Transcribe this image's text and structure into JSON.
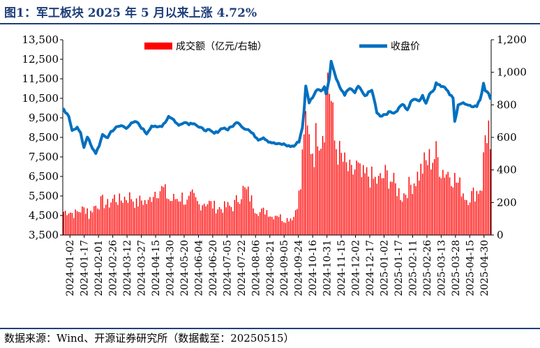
{
  "figure": {
    "title": "图1：军工板块 2025 年 5 月以来上涨 4.72%",
    "source": "数据来源：Wind、开源证券研究所（数据截至：20250515）"
  },
  "colors": {
    "title": "#1f3f7a",
    "volume": "#ff0000",
    "price": "#0070c0"
  },
  "chart_data": {
    "type": "bar+line",
    "title": "图1：军工板块 2025 年 5 月以来上涨 4.72%",
    "legend_placement": "top",
    "grid": false,
    "x_tick_labels": [
      "2024-01-02",
      "2024-01-17",
      "2024-02-01",
      "2024-02-26",
      "2024-03-12",
      "2024-03-27",
      "2024-04-15",
      "2024-04-30",
      "2024-05-20",
      "2024-06-04",
      "2024-06-20",
      "2024-07-05",
      "2024-07-22",
      "2024-08-06",
      "2024-08-21",
      "2024-09-05",
      "2024-09-24",
      "2024-10-16",
      "2024-10-31",
      "2024-11-15",
      "2024-12-02",
      "2024-12-17",
      "2025-01-02",
      "2025-01-17",
      "2025-02-11",
      "2025-02-26",
      "2025-03-13",
      "2025-03-28",
      "2025-04-15",
      "2025-04-30"
    ],
    "y_left": {
      "min": 3500,
      "max": 13500,
      "ticks": [
        "3,500",
        "4,500",
        "5,500",
        "6,500",
        "7,500",
        "8,500",
        "9,500",
        "10,500",
        "11,500",
        "12,500",
        "13,500"
      ]
    },
    "y_right": {
      "min": 0,
      "max": 1200,
      "ticks": [
        "0",
        "200",
        "400",
        "600",
        "800",
        "1,000",
        "1,200"
      ]
    },
    "series": [
      {
        "name": "成交额（亿元/右轴）",
        "type": "bar",
        "axis": "right",
        "anchors": [
          [
            0,
            140
          ],
          [
            3,
            145
          ],
          [
            6,
            125
          ],
          [
            10,
            150
          ],
          [
            14,
            160
          ],
          [
            15,
            110
          ],
          [
            17,
            160
          ],
          [
            20,
            185
          ],
          [
            23,
            200
          ],
          [
            26,
            180
          ],
          [
            30,
            225
          ],
          [
            33,
            205
          ],
          [
            36,
            225
          ],
          [
            40,
            230
          ],
          [
            43,
            185
          ],
          [
            46,
            210
          ],
          [
            50,
            190
          ],
          [
            53,
            260
          ],
          [
            56,
            275
          ],
          [
            59,
            270
          ],
          [
            63,
            205
          ],
          [
            66,
            220
          ],
          [
            70,
            230
          ],
          [
            73,
            190
          ],
          [
            76,
            230
          ],
          [
            80,
            180
          ],
          [
            83,
            200
          ],
          [
            86,
            190
          ],
          [
            90,
            165
          ],
          [
            93,
            160
          ],
          [
            96,
            170
          ],
          [
            100,
            170
          ],
          [
            103,
            220
          ],
          [
            106,
            270
          ],
          [
            109,
            250
          ],
          [
            113,
            165
          ],
          [
            116,
            135
          ],
          [
            120,
            150
          ],
          [
            123,
            110
          ],
          [
            126,
            130
          ],
          [
            130,
            90
          ],
          [
            133,
            100
          ],
          [
            136,
            110
          ],
          [
            138,
            200
          ],
          [
            140,
            280
          ],
          [
            142,
            650
          ],
          [
            144,
            600
          ],
          [
            146,
            540
          ],
          [
            148,
            500
          ],
          [
            150,
            650
          ],
          [
            152,
            600
          ],
          [
            154,
            700
          ],
          [
            156,
            1000
          ],
          [
            158,
            790
          ],
          [
            160,
            560
          ],
          [
            163,
            480
          ],
          [
            166,
            420
          ],
          [
            170,
            360
          ],
          [
            173,
            410
          ],
          [
            176,
            340
          ],
          [
            180,
            360
          ],
          [
            183,
            330
          ],
          [
            186,
            320
          ],
          [
            190,
            360
          ],
          [
            193,
            340
          ],
          [
            196,
            290
          ],
          [
            200,
            230
          ],
          [
            203,
            280
          ],
          [
            206,
            310
          ],
          [
            210,
            370
          ],
          [
            213,
            420
          ],
          [
            216,
            450
          ],
          [
            220,
            480
          ],
          [
            223,
            400
          ],
          [
            226,
            380
          ],
          [
            229,
            370
          ],
          [
            232,
            320
          ],
          [
            235,
            280
          ],
          [
            238,
            220
          ],
          [
            241,
            240
          ],
          [
            244,
            260
          ],
          [
            247,
            300
          ],
          [
            249,
            600
          ],
          [
            251,
            650
          ],
          [
            252,
            440
          ]
        ],
        "note": "values in 亿元; daily bars interpolated between visually read anchors (trading day index, value)"
      },
      {
        "name": "收盘价",
        "type": "line",
        "axis": "left",
        "anchors": [
          [
            0,
            9900
          ],
          [
            3,
            9550
          ],
          [
            5,
            8900
          ],
          [
            8,
            9000
          ],
          [
            10,
            8700
          ],
          [
            12,
            8000
          ],
          [
            14,
            8550
          ],
          [
            17,
            7900
          ],
          [
            19,
            7700
          ],
          [
            21,
            8100
          ],
          [
            23,
            8600
          ],
          [
            26,
            8500
          ],
          [
            28,
            8800
          ],
          [
            31,
            9000
          ],
          [
            34,
            9100
          ],
          [
            37,
            9000
          ],
          [
            40,
            9200
          ],
          [
            43,
            9300
          ],
          [
            46,
            9000
          ],
          [
            49,
            8700
          ],
          [
            52,
            9100
          ],
          [
            55,
            9000
          ],
          [
            58,
            9100
          ],
          [
            61,
            9400
          ],
          [
            62,
            9600
          ],
          [
            65,
            9400
          ],
          [
            68,
            9100
          ],
          [
            71,
            9300
          ],
          [
            74,
            9200
          ],
          [
            77,
            9250
          ],
          [
            80,
            9000
          ],
          [
            83,
            8900
          ],
          [
            86,
            8850
          ],
          [
            89,
            8700
          ],
          [
            91,
            8800
          ],
          [
            94,
            9000
          ],
          [
            97,
            8900
          ],
          [
            100,
            9100
          ],
          [
            103,
            9300
          ],
          [
            106,
            9000
          ],
          [
            109,
            8900
          ],
          [
            112,
            8650
          ],
          [
            115,
            8400
          ],
          [
            118,
            8500
          ],
          [
            121,
            8300
          ],
          [
            124,
            8200
          ],
          [
            127,
            8150
          ],
          [
            130,
            8150
          ],
          [
            133,
            8050
          ],
          [
            136,
            8050
          ],
          [
            139,
            8300
          ],
          [
            141,
            9000
          ],
          [
            142,
            9900
          ],
          [
            143,
            11100
          ],
          [
            145,
            10300
          ],
          [
            148,
            10700
          ],
          [
            150,
            11000
          ],
          [
            152,
            10900
          ],
          [
            154,
            11100
          ],
          [
            155,
            10700
          ],
          [
            157,
            11600
          ],
          [
            158,
            12400
          ],
          [
            160,
            11800
          ],
          [
            162,
            11300
          ],
          [
            164,
            10900
          ],
          [
            166,
            10700
          ],
          [
            168,
            10900
          ],
          [
            170,
            11000
          ],
          [
            172,
            10800
          ],
          [
            174,
            11100
          ],
          [
            176,
            10900
          ],
          [
            178,
            10600
          ],
          [
            180,
            10800
          ],
          [
            182,
            10900
          ],
          [
            183,
            10600
          ],
          [
            185,
            9800
          ],
          [
            187,
            9600
          ],
          [
            190,
            9700
          ],
          [
            193,
            9800
          ],
          [
            196,
            9750
          ],
          [
            198,
            10000
          ],
          [
            200,
            10200
          ],
          [
            203,
            9950
          ],
          [
            205,
            10300
          ],
          [
            208,
            10500
          ],
          [
            210,
            10400
          ],
          [
            212,
            10600
          ],
          [
            214,
            10300
          ],
          [
            216,
            10700
          ],
          [
            219,
            11000
          ],
          [
            220,
            11300
          ],
          [
            222,
            11200
          ],
          [
            225,
            11050
          ],
          [
            228,
            10700
          ],
          [
            230,
            10500
          ],
          [
            231,
            9300
          ],
          [
            233,
            10200
          ],
          [
            236,
            10250
          ],
          [
            239,
            10100
          ],
          [
            242,
            10100
          ],
          [
            244,
            10100
          ],
          [
            246,
            10450
          ],
          [
            247,
            10800
          ],
          [
            248,
            11300
          ],
          [
            249,
            10900
          ],
          [
            251,
            10700
          ],
          [
            252,
            10550
          ]
        ]
      }
    ],
    "n_points": 253
  }
}
